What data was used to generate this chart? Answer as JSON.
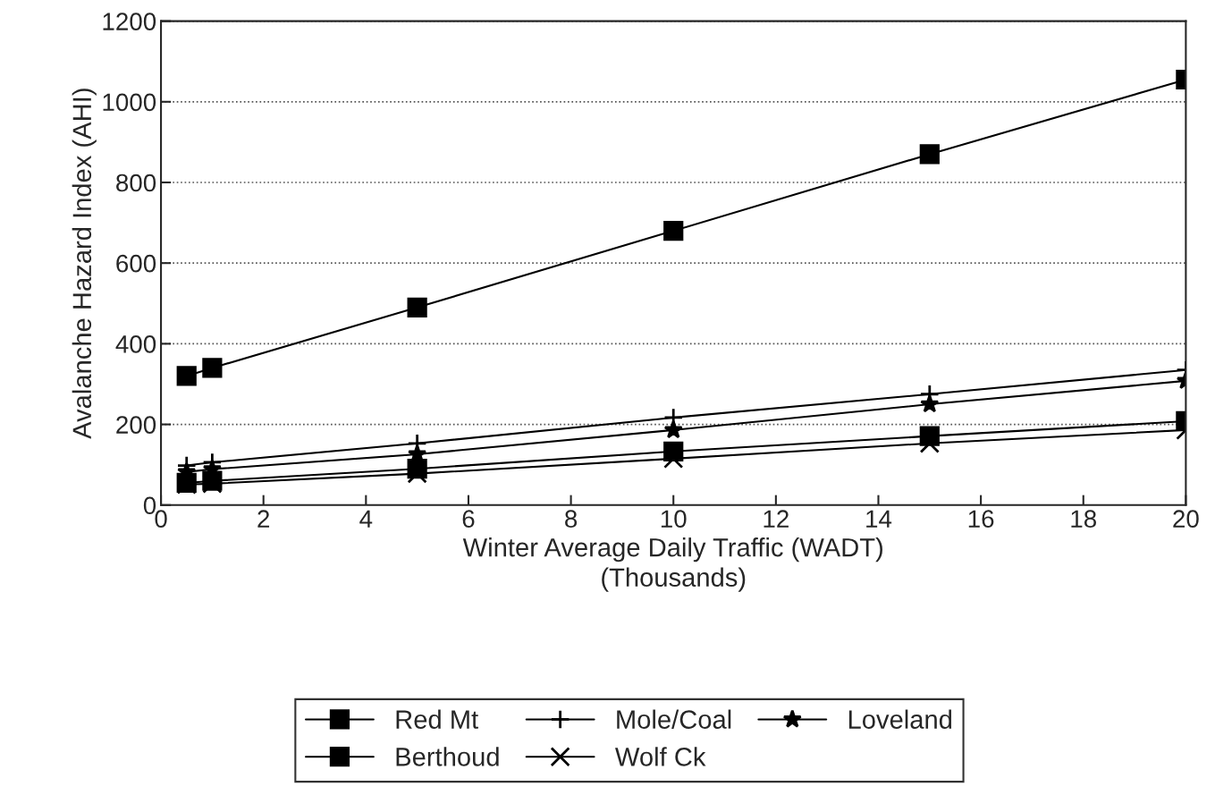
{
  "chart_data": {
    "type": "line",
    "xlabel": "Winter Average Daily Traffic (WADT)\n(Thousands)",
    "ylabel": "Avalanche Hazard Index (AHI)",
    "x": [
      0.5,
      1,
      5,
      10,
      15,
      20
    ],
    "series": [
      {
        "name": "Red Mt",
        "color": "#000000",
        "marker": "square",
        "values": [
          320,
          340,
          490,
          680,
          870,
          1055
        ]
      },
      {
        "name": "Mole/Coal",
        "color": "#000000",
        "marker": "plus",
        "values": [
          98,
          106,
          153,
          217,
          275,
          335
        ]
      },
      {
        "name": "Loveland",
        "color": "#000000",
        "marker": "star",
        "values": [
          82,
          89,
          126,
          186,
          250,
          308
        ]
      },
      {
        "name": "Berthoud",
        "color": "#000000",
        "marker": "square",
        "values": [
          55,
          60,
          90,
          133,
          171,
          208
        ]
      },
      {
        "name": "Wolf Ck",
        "color": "#000000",
        "marker": "cross",
        "values": [
          51,
          53,
          78,
          115,
          153,
          186
        ]
      }
    ],
    "xlim": [
      0,
      20
    ],
    "xticks": [
      0,
      2,
      4,
      6,
      8,
      10,
      12,
      14,
      16,
      18,
      20
    ],
    "ylim": [
      0,
      1200
    ],
    "yticks": [
      0,
      200,
      400,
      600,
      800,
      1000,
      1200
    ],
    "grid": "y",
    "legend": "bottom",
    "line_style": "solid"
  }
}
